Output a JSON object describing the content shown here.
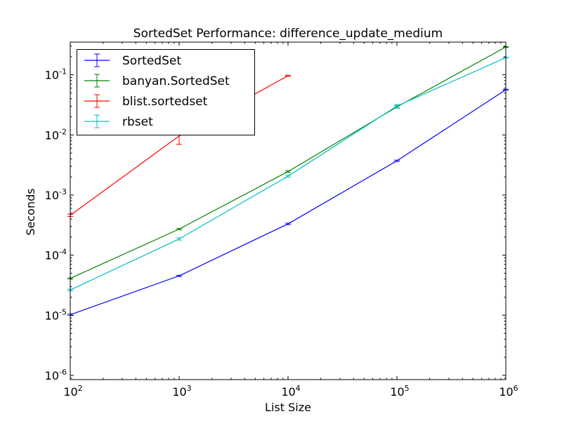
{
  "chart_data": {
    "type": "line",
    "title": "SortedSet Performance: difference_update_medium",
    "xlabel": "List Size",
    "ylabel": "Seconds",
    "xscale": "log",
    "yscale": "log",
    "xlim": [
      100,
      1000000
    ],
    "ylim": [
      8.5e-07,
      0.35
    ],
    "x_ticks": [
      {
        "value": 100,
        "base": "10",
        "exp": "2"
      },
      {
        "value": 1000,
        "base": "10",
        "exp": "3"
      },
      {
        "value": 10000,
        "base": "10",
        "exp": "4"
      },
      {
        "value": 100000,
        "base": "10",
        "exp": "5"
      },
      {
        "value": 1000000,
        "base": "10",
        "exp": "6"
      }
    ],
    "y_ticks": [
      {
        "value": 1e-06,
        "base": "10",
        "exp": "-6"
      },
      {
        "value": 1e-05,
        "base": "10",
        "exp": "-5"
      },
      {
        "value": 0.0001,
        "base": "10",
        "exp": "-4"
      },
      {
        "value": 0.001,
        "base": "10",
        "exp": "-3"
      },
      {
        "value": 0.01,
        "base": "10",
        "exp": "-2"
      },
      {
        "value": 0.1,
        "base": "10",
        "exp": "-1"
      }
    ],
    "legend_position": "top-left",
    "grid": false,
    "series": [
      {
        "name": "SortedSet",
        "color": "#0000ff",
        "x": [
          100,
          1000,
          10000,
          100000,
          1000000
        ],
        "y": [
          1.02e-05,
          4.52e-05,
          0.000331,
          0.00371,
          0.0565
        ],
        "err": [
          3e-07,
          1e-06,
          1e-05,
          0.0001,
          0.001
        ]
      },
      {
        "name": "banyan.SortedSet",
        "color": "#008000",
        "x": [
          100,
          1000,
          10000,
          100000,
          1000000
        ],
        "y": [
          4.11e-05,
          0.000271,
          0.00246,
          0.0292,
          0.29
        ],
        "err": [
          1e-06,
          7e-06,
          7e-05,
          0.0012,
          0.004
        ]
      },
      {
        "name": "blist.sortedset",
        "color": "#ff0000",
        "x": [
          100,
          1000,
          10000
        ],
        "y": [
          0.00046,
          0.0096,
          0.0967
        ],
        "err": [
          2e-05,
          0.0026,
          0.0015
        ]
      },
      {
        "name": "rbset",
        "color": "#00bfbf",
        "x": [
          100,
          1000,
          10000,
          100000,
          1000000
        ],
        "y": [
          2.63e-05,
          0.000186,
          0.00206,
          0.0302,
          0.193
        ],
        "err": [
          8e-07,
          8e-06,
          8e-05,
          0.0018,
          0.003
        ]
      }
    ]
  }
}
